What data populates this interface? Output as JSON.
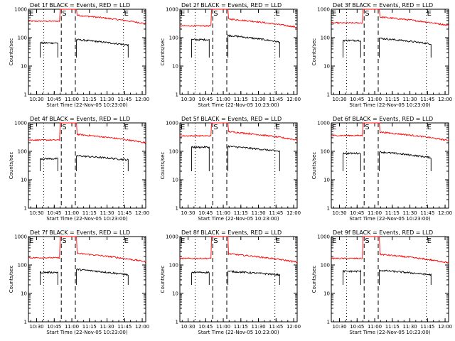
{
  "chart_data": {
    "type": "line",
    "layout": "3x3 grid of panels",
    "shared": {
      "xtick_labels": [
        "10:30",
        "10:45",
        "11:00",
        "11:15",
        "11:30",
        "11:45",
        "12:00"
      ],
      "xlim": [
        "10:23",
        "12:03"
      ],
      "ylabel": "Counts/sec",
      "yscale": "log",
      "ylim": [
        1,
        1000
      ],
      "ytick_labels": [
        "1",
        "10",
        "100",
        "1000"
      ],
      "series_colors": {
        "Events": "#000000",
        "LLD": "#ff0000"
      },
      "markers": [
        {
          "text": "E",
          "time": "10:23",
          "line": "none"
        },
        {
          "text": "",
          "time": "10:36",
          "line": "dotted"
        },
        {
          "text": "S",
          "time": "10:51",
          "line": "dashed"
        },
        {
          "text": "",
          "time": "11:03",
          "line": "dashed"
        },
        {
          "text": "E",
          "time": "11:44",
          "line": "dotted"
        }
      ]
    },
    "panels": [
      {
        "title": "Det 1f BLACK = Events, RED = LLD",
        "xlabel": "Start Time (22-Nov-05 10:23:00)",
        "llD_level": 380,
        "lld_post": 620,
        "events_pre": 65,
        "events_post": 85,
        "events_end": 55
      },
      {
        "title": "Det 2f BLACK = Events, RED = LLD",
        "xlabel": "Start Time (22-Nov-05 10:23:00)",
        "llD_level": 260,
        "lld_post": 460,
        "events_pre": 85,
        "events_post": 120,
        "events_end": 70
      },
      {
        "title": "Det 3f BLACK = Events, RED = LLD",
        "xlabel": "Start Time (22-Nov-05 10:23:00)",
        "llD_level": 330,
        "lld_post": 540,
        "events_pre": 80,
        "events_post": 95,
        "events_end": 60
      },
      {
        "title": "Det 4f BLACK = Events, RED = LLD",
        "xlabel": "Start Time (22-Nov-05 10:23:00)",
        "llD_level": 250,
        "lld_post": 400,
        "events_pre": 55,
        "events_post": 70,
        "events_end": 50
      },
      {
        "title": "Det 5f BLACK = Events, RED = LLD",
        "xlabel": "Start Time (22-Nov-05 10:23:00)",
        "llD_level": 350,
        "lld_post": 500,
        "events_pre": 140,
        "events_post": 150,
        "events_end": 100
      },
      {
        "title": "Det 6f BLACK = Events, RED = LLD",
        "xlabel": "Start Time (22-Nov-05 10:23:00)",
        "llD_level": 360,
        "lld_post": 480,
        "events_pre": 85,
        "events_post": 95,
        "events_end": 60
      },
      {
        "title": "Det 7f BLACK = Events, RED = LLD",
        "xlabel": "Start Time (22-Nov-05 10:23:00)",
        "llD_level": 180,
        "lld_post": 260,
        "events_pre": 55,
        "events_post": 70,
        "events_end": 45
      },
      {
        "title": "Det 8f BLACK = Events, RED = LLD",
        "xlabel": "Start Time (22-Nov-05 10:23:00)",
        "llD_level": 170,
        "lld_post": 250,
        "events_pre": 55,
        "events_post": 60,
        "events_end": 45
      },
      {
        "title": "Det 9f BLACK = Events, RED = LLD",
        "xlabel": "Start Time (22-Nov-05 10:23:00)",
        "llD_level": 170,
        "lld_post": 240,
        "events_pre": 60,
        "events_post": 65,
        "events_end": 45
      }
    ]
  }
}
